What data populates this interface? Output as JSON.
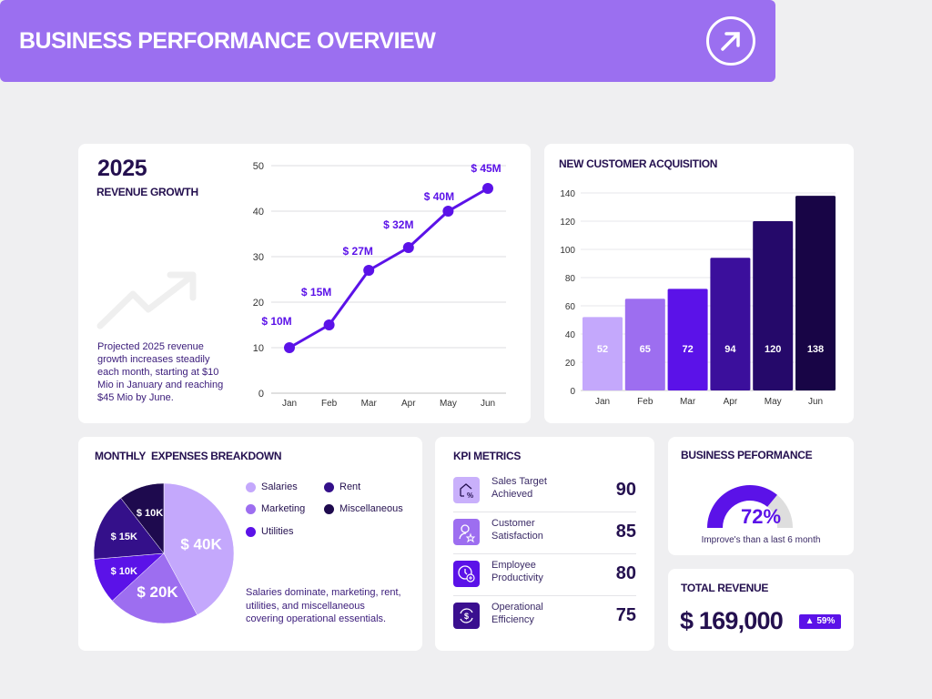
{
  "header": {
    "title": "BUSINESS PERFORMANCE OVERVIEW",
    "icon": "arrow-up-right-icon"
  },
  "revenue": {
    "year": "2025",
    "title": "REVENUE GROWTH",
    "description": "Projected 2025 revenue growth increases steadily each month, starting at $10 Mio in January and reaching $45 Mio by June.",
    "chart_data": {
      "type": "line",
      "categories": [
        "Jan",
        "Feb",
        "Mar",
        "Apr",
        "May",
        "Jun"
      ],
      "values": [
        10,
        15,
        27,
        32,
        40,
        45
      ],
      "data_labels": [
        "$ 10M",
        "$ 15M",
        "$ 27M",
        "$ 32M",
        "$ 40M",
        "$ 45M"
      ],
      "ylim": [
        0,
        50
      ],
      "yticks": [
        0,
        10,
        20,
        30,
        40,
        50
      ],
      "grid": true,
      "color": "#5b12e8"
    }
  },
  "acquisition": {
    "title": "NEW CUSTOMER ACQUISITION",
    "chart_data": {
      "type": "bar",
      "categories": [
        "Jan",
        "Feb",
        "Mar",
        "Apr",
        "May",
        "Jun"
      ],
      "values": [
        52,
        65,
        72,
        94,
        120,
        138
      ],
      "ylim": [
        0,
        140
      ],
      "yticks": [
        0,
        20,
        40,
        60,
        80,
        100,
        120,
        140
      ],
      "grid": true,
      "colors": [
        "#c4a8fc",
        "#9d6ef0",
        "#5b12e8",
        "#3b0f9c",
        "#25096a",
        "#180546"
      ]
    }
  },
  "expenses": {
    "title": "MONTHLY  EXPENSES BREAKDOWN",
    "description": "Salaries dominate, marketing, rent, utilities, and miscellaneous covering operational essentials.",
    "chart_data": {
      "type": "pie",
      "slices": [
        {
          "name": "Salaries",
          "value": 40,
          "label": "$ 40K",
          "color": "#c4a8fc"
        },
        {
          "name": "Marketing",
          "value": 20,
          "label": "$ 20K",
          "color": "#9d6ef0"
        },
        {
          "name": "Utilities",
          "value": 10,
          "label": "$ 10K",
          "color": "#5b12e8"
        },
        {
          "name": "Rent",
          "value": 15,
          "label": "$ 15K",
          "color": "#34108a"
        },
        {
          "name": "Miscellaneous",
          "value": 10,
          "label": "$ 10K",
          "color": "#1e0a4e"
        }
      ]
    }
  },
  "kpi": {
    "title": "KPI METRICS",
    "items": [
      {
        "label": "Sales Target Achieved",
        "value": "90",
        "icon": "house-percent-icon",
        "color": "#c9b0fb"
      },
      {
        "label": "Customer Satisfaction",
        "value": "85",
        "icon": "user-star-icon",
        "color": "#9d6ef0"
      },
      {
        "label": "Employee Productivity",
        "value": "80",
        "icon": "clock-plus-icon",
        "color": "#5b12e8"
      },
      {
        "label": "Operational Efficiency",
        "value": "75",
        "icon": "dollar-refresh-icon",
        "color": "#3a0f8f"
      }
    ]
  },
  "performance": {
    "title": "BUSINESS PEFORMANCE",
    "value": "72%",
    "fraction": 0.72,
    "caption": "Improve's than a last 6 month",
    "color": "#5b12e8",
    "track": "#dedede"
  },
  "total": {
    "title": "TOTAL REVENUE",
    "value": "$ 169,000",
    "badge": "▲ 59%",
    "badge_color": "#5b12e8"
  }
}
